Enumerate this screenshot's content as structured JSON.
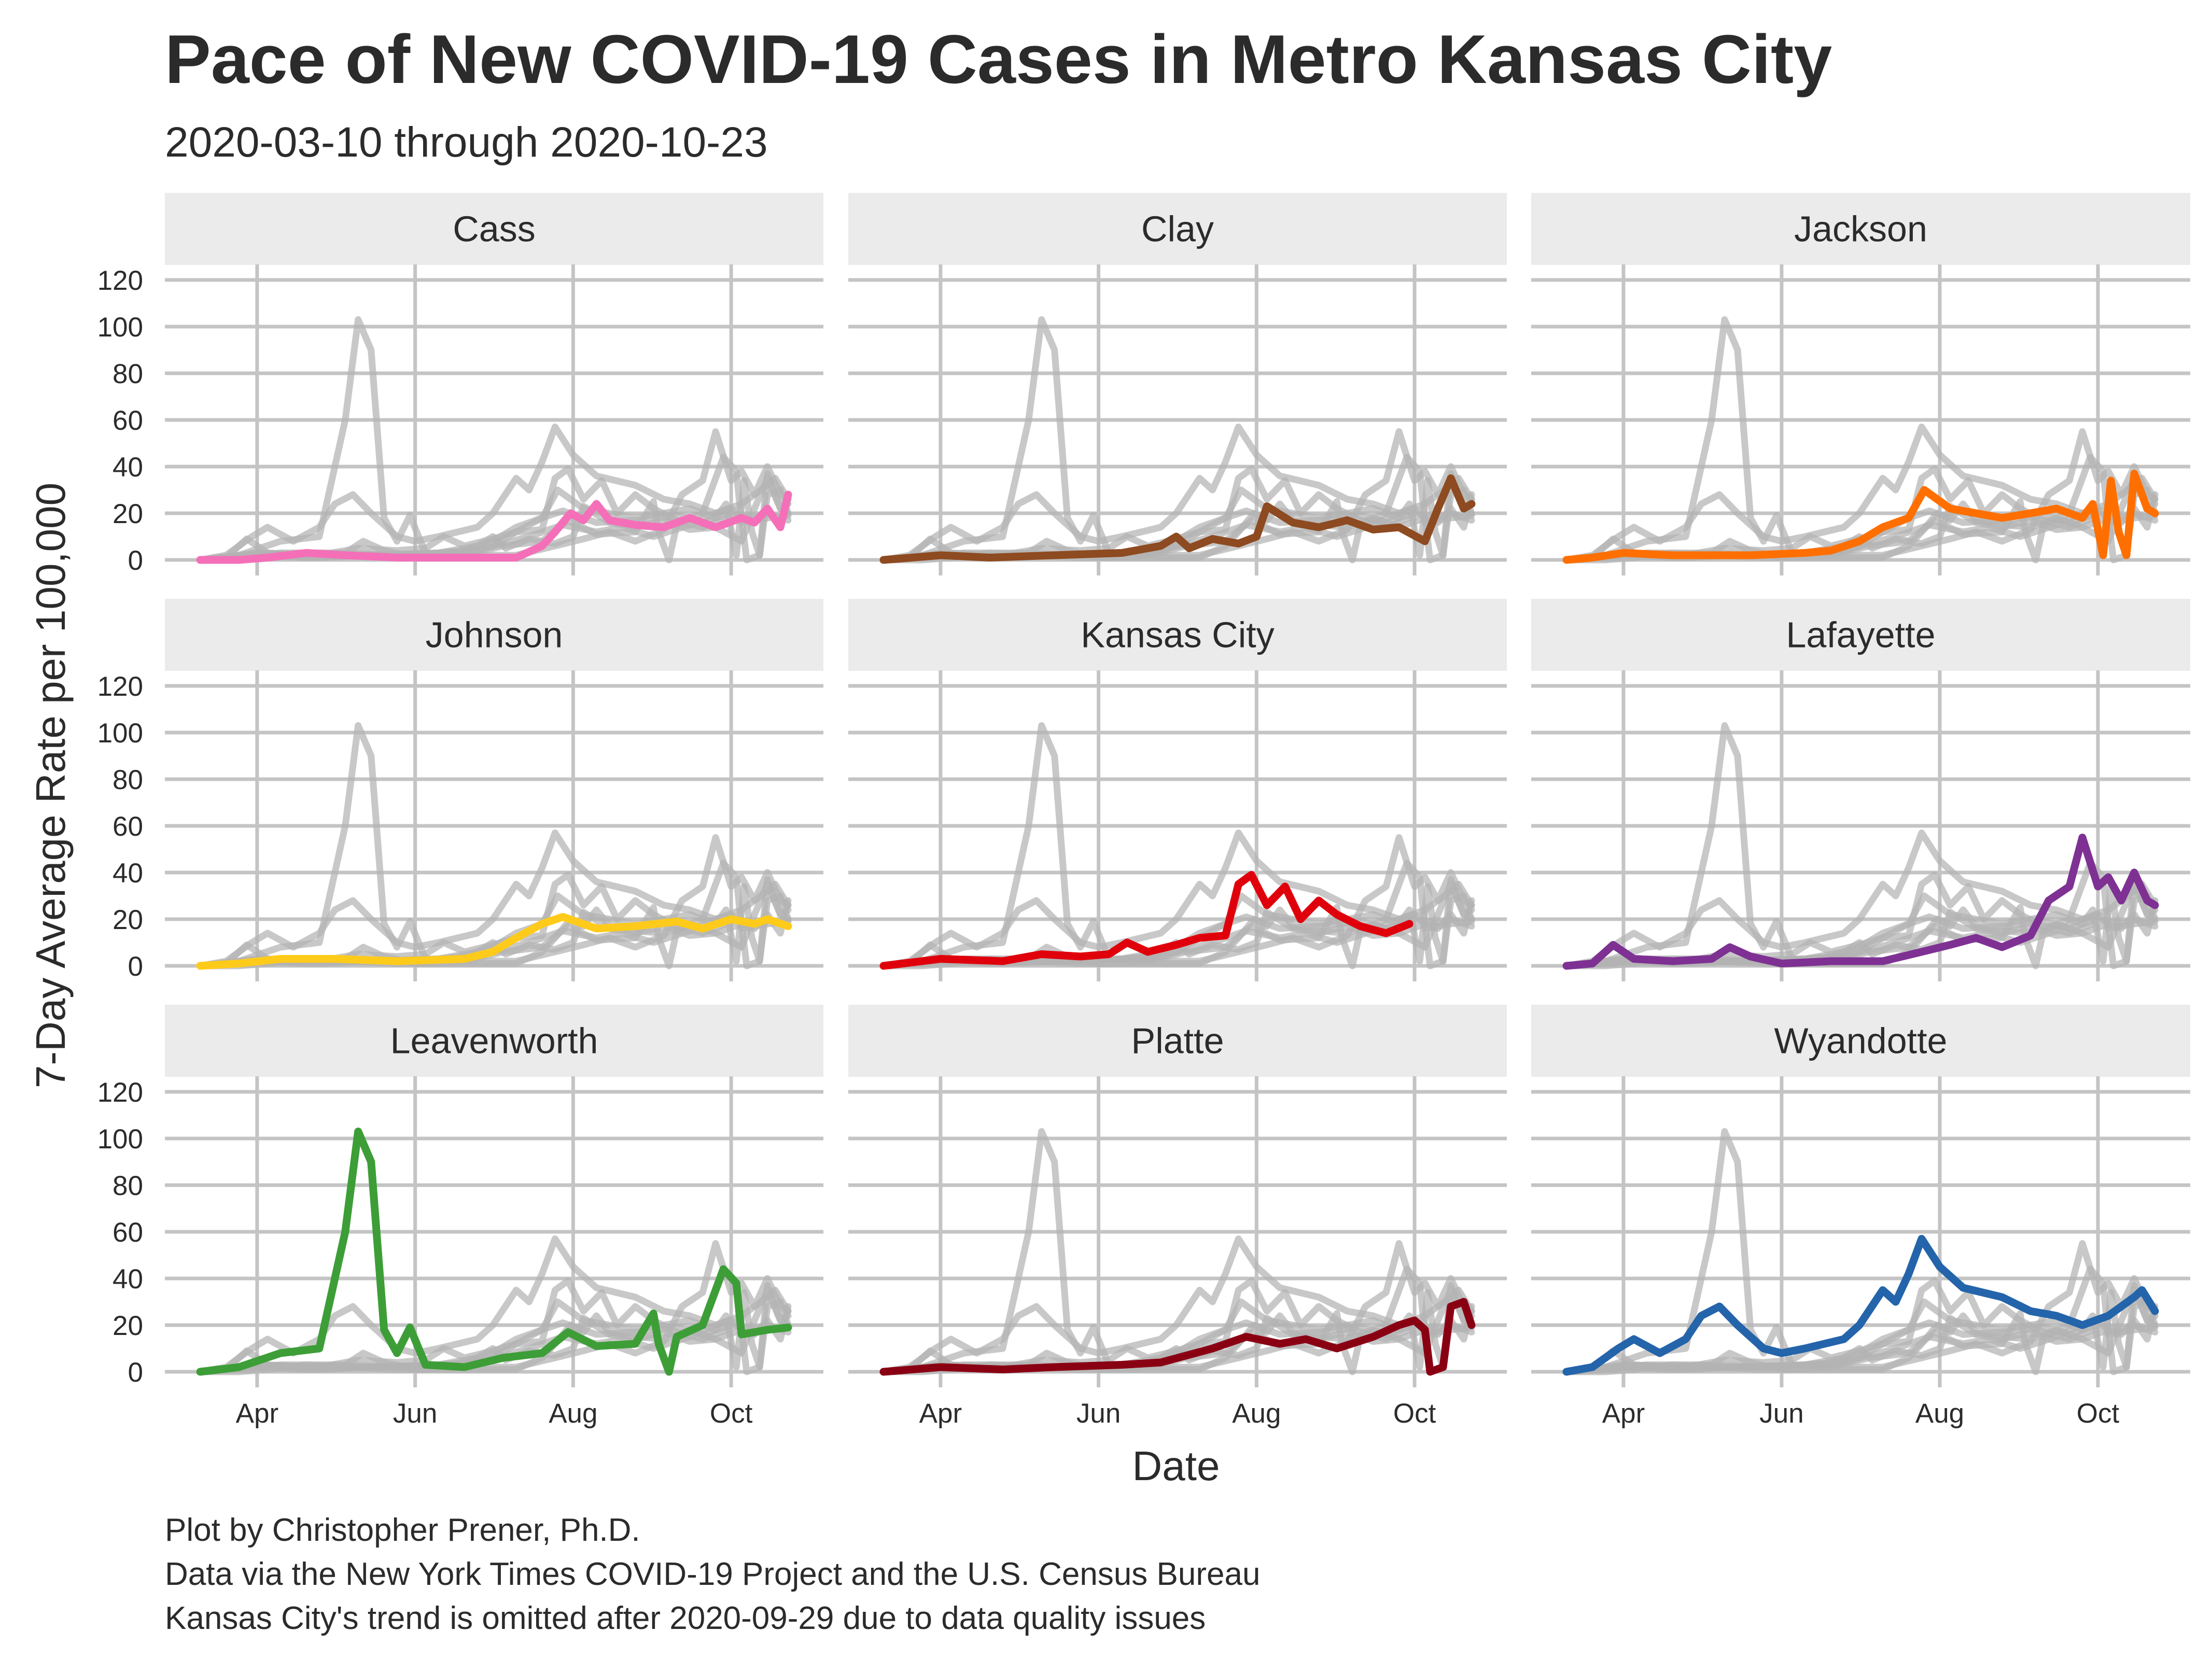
{
  "chart_data": {
    "type": "line",
    "title": "Pace of New COVID-19 Cases in Metro Kansas City",
    "subtitle": "2020-03-10 through 2020-10-23",
    "xlabel": "Date",
    "ylabel": "7-Day Average Rate per 100,000",
    "x_ticks": [
      {
        "date": "2020-04-01",
        "label": "Apr"
      },
      {
        "date": "2020-06-01",
        "label": "Jun"
      },
      {
        "date": "2020-08-01",
        "label": "Aug"
      },
      {
        "date": "2020-10-01",
        "label": "Oct"
      }
    ],
    "xlim": [
      "2020-03-10",
      "2020-10-23"
    ],
    "y_ticks": [
      0,
      20,
      40,
      60,
      80,
      100,
      120
    ],
    "ylim": [
      0,
      120
    ],
    "grid": true,
    "facets": 9,
    "caption": [
      "Plot by Christopher Prener, Ph.D.",
      "Data via the New York Times COVID-19 Project and the U.S. Census Bureau",
      "Kansas City's trend is omitted after 2020-09-29 due to data quality issues"
    ],
    "series": [
      {
        "name": "Cass",
        "color": "#f46fb8",
        "points": [
          [
            "2020-03-10",
            0
          ],
          [
            "2020-03-25",
            0
          ],
          [
            "2020-04-05",
            1
          ],
          [
            "2020-04-20",
            3
          ],
          [
            "2020-05-05",
            2
          ],
          [
            "2020-05-25",
            1
          ],
          [
            "2020-06-20",
            1
          ],
          [
            "2020-07-10",
            1
          ],
          [
            "2020-07-20",
            6
          ],
          [
            "2020-07-25",
            12
          ],
          [
            "2020-07-31",
            20
          ],
          [
            "2020-08-05",
            17
          ],
          [
            "2020-08-10",
            24
          ],
          [
            "2020-08-15",
            17
          ],
          [
            "2020-08-25",
            15
          ],
          [
            "2020-09-05",
            14
          ],
          [
            "2020-09-15",
            18
          ],
          [
            "2020-09-25",
            14
          ],
          [
            "2020-10-05",
            18
          ],
          [
            "2020-10-10",
            16
          ],
          [
            "2020-10-15",
            22
          ],
          [
            "2020-10-20",
            14
          ],
          [
            "2020-10-23",
            28
          ]
        ]
      },
      {
        "name": "Clay",
        "color": "#8e4a20",
        "points": [
          [
            "2020-03-10",
            0
          ],
          [
            "2020-04-01",
            2
          ],
          [
            "2020-04-20",
            1
          ],
          [
            "2020-05-15",
            2
          ],
          [
            "2020-06-10",
            3
          ],
          [
            "2020-06-25",
            6
          ],
          [
            "2020-07-01",
            10
          ],
          [
            "2020-07-06",
            5
          ],
          [
            "2020-07-15",
            9
          ],
          [
            "2020-07-25",
            7
          ],
          [
            "2020-08-01",
            10
          ],
          [
            "2020-08-05",
            23
          ],
          [
            "2020-08-15",
            16
          ],
          [
            "2020-08-25",
            14
          ],
          [
            "2020-09-05",
            17
          ],
          [
            "2020-09-15",
            13
          ],
          [
            "2020-09-25",
            14
          ],
          [
            "2020-10-05",
            8
          ],
          [
            "2020-10-10",
            22
          ],
          [
            "2020-10-15",
            35
          ],
          [
            "2020-10-20",
            22
          ],
          [
            "2020-10-23",
            24
          ]
        ]
      },
      {
        "name": "Jackson",
        "color": "#ff6f00",
        "points": [
          [
            "2020-03-10",
            0
          ],
          [
            "2020-03-20",
            1
          ],
          [
            "2020-04-01",
            3
          ],
          [
            "2020-04-20",
            2
          ],
          [
            "2020-05-20",
            2
          ],
          [
            "2020-06-10",
            3
          ],
          [
            "2020-06-20",
            4
          ],
          [
            "2020-07-01",
            8
          ],
          [
            "2020-07-10",
            14
          ],
          [
            "2020-07-20",
            18
          ],
          [
            "2020-07-26",
            30
          ],
          [
            "2020-08-05",
            22
          ],
          [
            "2020-08-15",
            20
          ],
          [
            "2020-08-25",
            18
          ],
          [
            "2020-09-05",
            20
          ],
          [
            "2020-09-15",
            22
          ],
          [
            "2020-09-25",
            18
          ],
          [
            "2020-09-29",
            24
          ],
          [
            "2020-10-03",
            2
          ],
          [
            "2020-10-06",
            34
          ],
          [
            "2020-10-09",
            12
          ],
          [
            "2020-10-12",
            2
          ],
          [
            "2020-10-15",
            37
          ],
          [
            "2020-10-20",
            22
          ],
          [
            "2020-10-23",
            20
          ]
        ]
      },
      {
        "name": "Johnson",
        "color": "#ffcb1a",
        "points": [
          [
            "2020-03-10",
            0
          ],
          [
            "2020-03-25",
            1
          ],
          [
            "2020-04-10",
            3
          ],
          [
            "2020-05-01",
            3
          ],
          [
            "2020-05-25",
            2
          ],
          [
            "2020-06-20",
            3
          ],
          [
            "2020-07-01",
            6
          ],
          [
            "2020-07-10",
            12
          ],
          [
            "2020-07-20",
            18
          ],
          [
            "2020-07-28",
            21
          ],
          [
            "2020-08-10",
            16
          ],
          [
            "2020-08-25",
            17
          ],
          [
            "2020-09-10",
            19
          ],
          [
            "2020-09-20",
            16
          ],
          [
            "2020-10-01",
            20
          ],
          [
            "2020-10-10",
            18
          ],
          [
            "2020-10-15",
            20
          ],
          [
            "2020-10-23",
            17
          ]
        ]
      },
      {
        "name": "Kansas City",
        "color": "#e0000b",
        "points": [
          [
            "2020-03-10",
            0
          ],
          [
            "2020-04-01",
            3
          ],
          [
            "2020-04-25",
            2
          ],
          [
            "2020-05-10",
            5
          ],
          [
            "2020-05-25",
            4
          ],
          [
            "2020-06-05",
            5
          ],
          [
            "2020-06-12",
            10
          ],
          [
            "2020-06-20",
            6
          ],
          [
            "2020-07-01",
            9
          ],
          [
            "2020-07-10",
            12
          ],
          [
            "2020-07-20",
            13
          ],
          [
            "2020-07-25",
            35
          ],
          [
            "2020-07-30",
            39
          ],
          [
            "2020-08-05",
            26
          ],
          [
            "2020-08-12",
            34
          ],
          [
            "2020-08-18",
            20
          ],
          [
            "2020-08-25",
            28
          ],
          [
            "2020-09-01",
            22
          ],
          [
            "2020-09-10",
            17
          ],
          [
            "2020-09-20",
            14
          ],
          [
            "2020-09-29",
            18
          ]
        ]
      },
      {
        "name": "Lafayette",
        "color": "#7e3193",
        "points": [
          [
            "2020-03-10",
            0
          ],
          [
            "2020-03-20",
            1
          ],
          [
            "2020-03-28",
            9
          ],
          [
            "2020-04-05",
            3
          ],
          [
            "2020-04-20",
            2
          ],
          [
            "2020-05-05",
            3
          ],
          [
            "2020-05-12",
            8
          ],
          [
            "2020-05-20",
            4
          ],
          [
            "2020-06-01",
            1
          ],
          [
            "2020-06-20",
            2
          ],
          [
            "2020-07-10",
            2
          ],
          [
            "2020-07-25",
            6
          ],
          [
            "2020-08-05",
            9
          ],
          [
            "2020-08-15",
            12
          ],
          [
            "2020-08-25",
            8
          ],
          [
            "2020-09-05",
            13
          ],
          [
            "2020-09-12",
            28
          ],
          [
            "2020-09-20",
            34
          ],
          [
            "2020-09-25",
            55
          ],
          [
            "2020-10-01",
            34
          ],
          [
            "2020-10-05",
            38
          ],
          [
            "2020-10-10",
            28
          ],
          [
            "2020-10-15",
            40
          ],
          [
            "2020-10-20",
            28
          ],
          [
            "2020-10-23",
            26
          ]
        ]
      },
      {
        "name": "Leavenworth",
        "color": "#3d9e37",
        "points": [
          [
            "2020-03-10",
            0
          ],
          [
            "2020-03-25",
            2
          ],
          [
            "2020-04-10",
            8
          ],
          [
            "2020-04-25",
            10
          ],
          [
            "2020-05-01",
            40
          ],
          [
            "2020-05-05",
            60
          ],
          [
            "2020-05-10",
            103
          ],
          [
            "2020-05-15",
            90
          ],
          [
            "2020-05-20",
            18
          ],
          [
            "2020-05-25",
            8
          ],
          [
            "2020-05-30",
            19
          ],
          [
            "2020-06-05",
            3
          ],
          [
            "2020-06-20",
            2
          ],
          [
            "2020-07-05",
            6
          ],
          [
            "2020-07-20",
            8
          ],
          [
            "2020-07-30",
            17
          ],
          [
            "2020-08-10",
            11
          ],
          [
            "2020-08-25",
            12
          ],
          [
            "2020-09-01",
            25
          ],
          [
            "2020-09-03",
            12
          ],
          [
            "2020-09-07",
            0
          ],
          [
            "2020-09-10",
            15
          ],
          [
            "2020-09-20",
            20
          ],
          [
            "2020-09-28",
            44
          ],
          [
            "2020-10-03",
            38
          ],
          [
            "2020-10-05",
            16
          ],
          [
            "2020-10-15",
            18
          ],
          [
            "2020-10-23",
            19
          ]
        ]
      },
      {
        "name": "Platte",
        "color": "#8a0013",
        "points": [
          [
            "2020-03-10",
            0
          ],
          [
            "2020-04-01",
            2
          ],
          [
            "2020-04-25",
            1
          ],
          [
            "2020-05-15",
            2
          ],
          [
            "2020-06-10",
            3
          ],
          [
            "2020-06-25",
            4
          ],
          [
            "2020-07-05",
            7
          ],
          [
            "2020-07-15",
            10
          ],
          [
            "2020-07-28",
            15
          ],
          [
            "2020-08-10",
            12
          ],
          [
            "2020-08-20",
            14
          ],
          [
            "2020-09-01",
            10
          ],
          [
            "2020-09-15",
            15
          ],
          [
            "2020-09-25",
            20
          ],
          [
            "2020-10-01",
            22
          ],
          [
            "2020-10-05",
            18
          ],
          [
            "2020-10-07",
            0
          ],
          [
            "2020-10-12",
            2
          ],
          [
            "2020-10-15",
            28
          ],
          [
            "2020-10-20",
            30
          ],
          [
            "2020-10-23",
            20
          ]
        ]
      },
      {
        "name": "Wyandotte",
        "color": "#2464aa",
        "points": [
          [
            "2020-03-10",
            0
          ],
          [
            "2020-03-20",
            2
          ],
          [
            "2020-03-30",
            10
          ],
          [
            "2020-04-05",
            14
          ],
          [
            "2020-04-15",
            8
          ],
          [
            "2020-04-25",
            14
          ],
          [
            "2020-05-01",
            24
          ],
          [
            "2020-05-08",
            28
          ],
          [
            "2020-05-15",
            20
          ],
          [
            "2020-05-25",
            10
          ],
          [
            "2020-06-01",
            8
          ],
          [
            "2020-06-10",
            10
          ],
          [
            "2020-06-25",
            14
          ],
          [
            "2020-07-01",
            20
          ],
          [
            "2020-07-10",
            35
          ],
          [
            "2020-07-15",
            30
          ],
          [
            "2020-07-20",
            42
          ],
          [
            "2020-07-25",
            57
          ],
          [
            "2020-08-01",
            45
          ],
          [
            "2020-08-10",
            36
          ],
          [
            "2020-08-25",
            32
          ],
          [
            "2020-09-05",
            26
          ],
          [
            "2020-09-15",
            24
          ],
          [
            "2020-09-25",
            20
          ],
          [
            "2020-10-05",
            24
          ],
          [
            "2020-10-15",
            32
          ],
          [
            "2020-10-18",
            35
          ],
          [
            "2020-10-23",
            26
          ]
        ]
      }
    ]
  }
}
